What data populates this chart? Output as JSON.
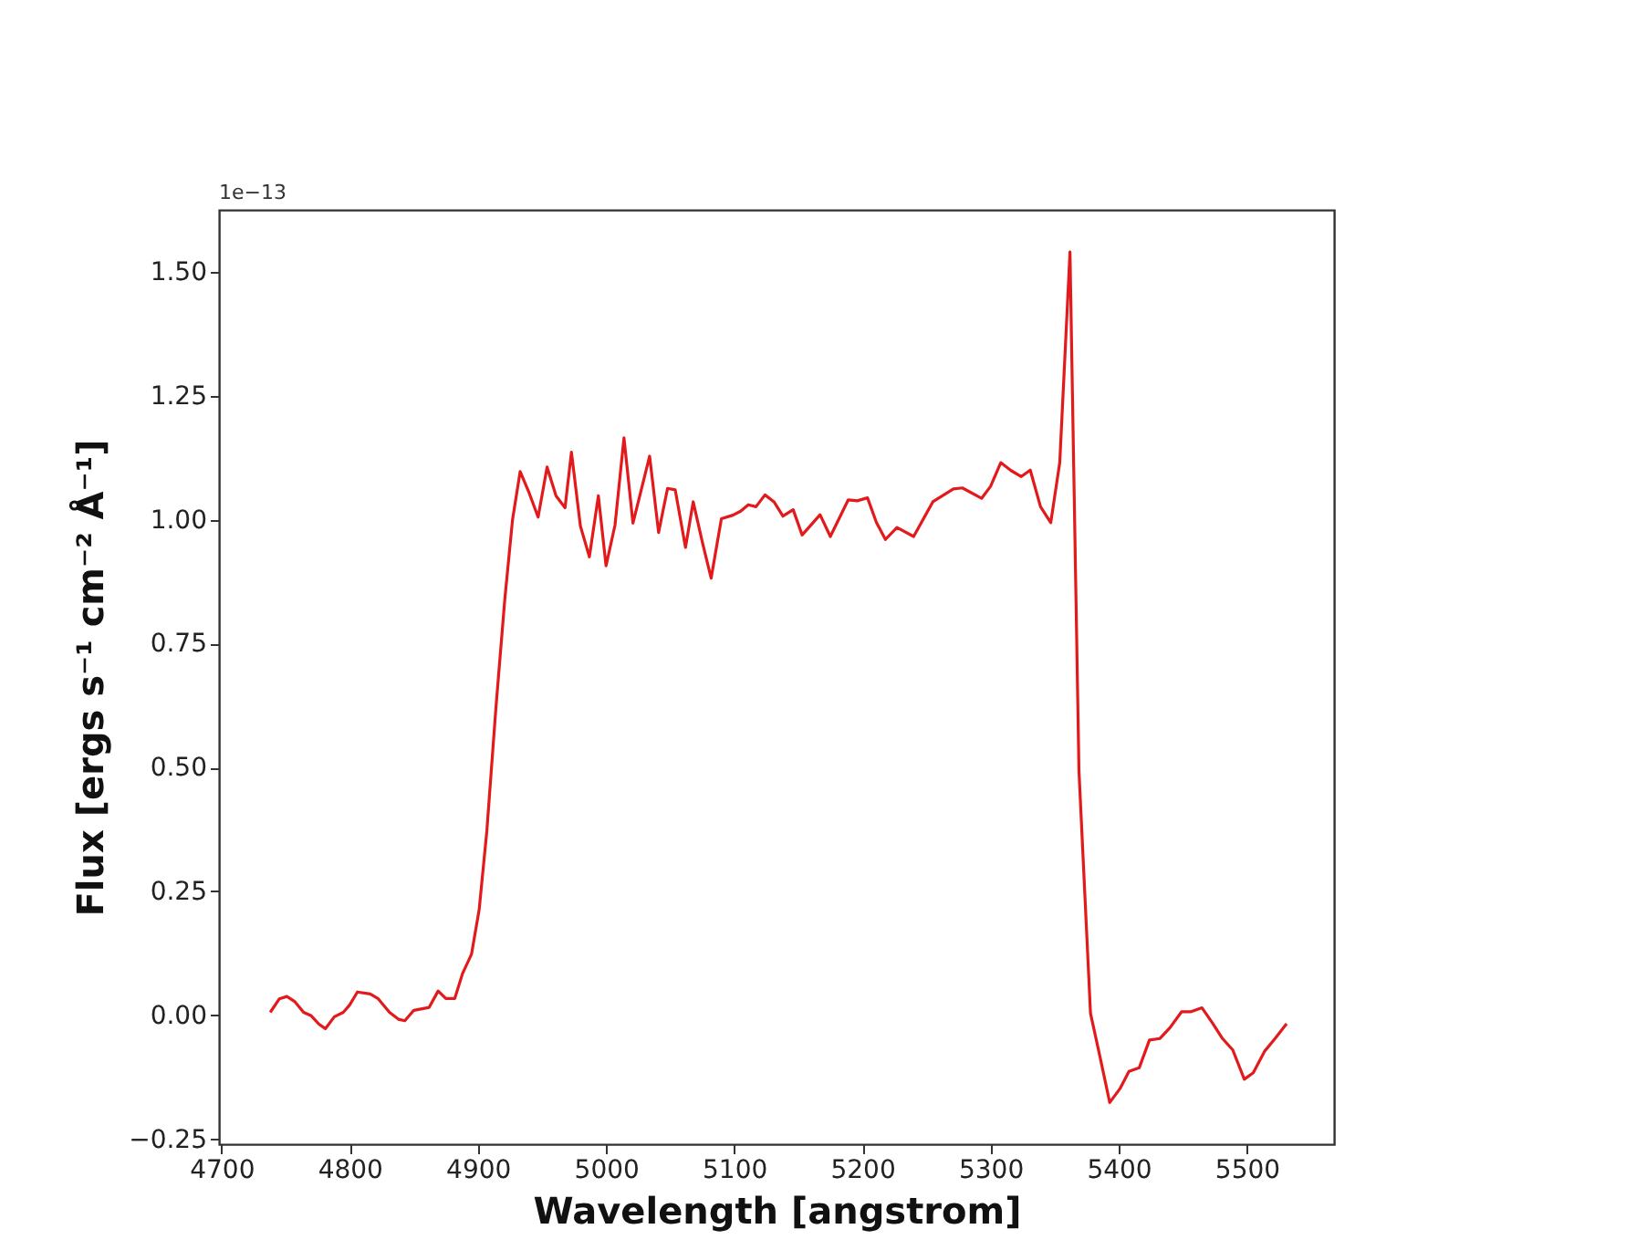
{
  "chart_data": {
    "type": "line",
    "xlabel": "Wavelength [angstrom]",
    "ylabel": "Flux [ergs s⁻¹ cm⁻² Å⁻¹]",
    "annotations": [
      "1e−13"
    ],
    "xlim": [
      4698,
      5568
    ],
    "ylim": [
      -0.26,
      1.625
    ],
    "xticks": [
      {
        "value": 4700,
        "label": "4700"
      },
      {
        "value": 4800,
        "label": "4800"
      },
      {
        "value": 4900,
        "label": "4900"
      },
      {
        "value": 5000,
        "label": "5000"
      },
      {
        "value": 5100,
        "label": "5100"
      },
      {
        "value": 5200,
        "label": "5200"
      },
      {
        "value": 5300,
        "label": "5300"
      },
      {
        "value": 5400,
        "label": "5400"
      },
      {
        "value": 5500,
        "label": "5500"
      }
    ],
    "yticks": [
      {
        "value": -0.25,
        "label": "−0.25"
      },
      {
        "value": 0,
        "label": "0.00"
      },
      {
        "value": 0.25,
        "label": "0.25"
      },
      {
        "value": 0.5,
        "label": "0.50"
      },
      {
        "value": 0.75,
        "label": "0.75"
      },
      {
        "value": 1,
        "label": "1.00"
      },
      {
        "value": 1.25,
        "label": "1.25"
      },
      {
        "value": 1.5,
        "label": "1.50"
      }
    ],
    "grid": false,
    "legend": false,
    "marker": "none",
    "line_style": "solid",
    "series": [
      {
        "color": "#e31a1c",
        "x": [
          4738,
          4745,
          4751,
          4757,
          4764,
          4770,
          4776,
          4781,
          4788,
          4795,
          4800,
          4806,
          4816,
          4822,
          4831,
          4838,
          4843,
          4850,
          4862,
          4869,
          4875,
          4882,
          4888,
          4895,
          4901,
          4907,
          4914,
          4921,
          4927,
          4933,
          4940,
          4947,
          4954,
          4961,
          4968,
          4973,
          4980,
          4987,
          4994,
          5000,
          5007,
          5014,
          5021,
          5034,
          5041,
          5048,
          5054,
          5062,
          5068,
          5075,
          5082,
          5090,
          5099,
          5105,
          5111,
          5117,
          5124,
          5131,
          5138,
          5146,
          5153,
          5167,
          5175,
          5189,
          5196,
          5204,
          5211,
          5218,
          5227,
          5240,
          5255,
          5263,
          5271,
          5278,
          5293,
          5300,
          5308,
          5316,
          5324,
          5331,
          5339,
          5347,
          5354,
          5362,
          5369,
          5378,
          5385,
          5393,
          5401,
          5408,
          5416,
          5424,
          5432,
          5440,
          5449,
          5456,
          5465,
          5473,
          5481,
          5489,
          5498,
          5505,
          5514,
          5522,
          5531
        ],
        "values": [
          0.006,
          0.033,
          0.038,
          0.028,
          0.006,
          -0.001,
          -0.018,
          -0.027,
          -0.003,
          0.006,
          0.021,
          0.047,
          0.043,
          0.034,
          0.006,
          -0.008,
          -0.011,
          0.01,
          0.016,
          0.049,
          0.034,
          0.034,
          0.084,
          0.123,
          0.213,
          0.372,
          0.618,
          0.839,
          0.999,
          1.097,
          1.054,
          1.005,
          1.106,
          1.048,
          1.024,
          1.136,
          0.987,
          0.925,
          1.048,
          0.907,
          0.989,
          1.165,
          0.993,
          1.128,
          0.974,
          1.063,
          1.06,
          0.944,
          1.036,
          0.956,
          0.882,
          1.002,
          1.009,
          1.017,
          1.03,
          1.026,
          1.05,
          1.036,
          1.007,
          1.02,
          0.969,
          1.01,
          0.966,
          1.04,
          1.038,
          1.044,
          0.994,
          0.96,
          0.984,
          0.966,
          1.036,
          1.049,
          1.062,
          1.064,
          1.043,
          1.067,
          1.115,
          1.099,
          1.087,
          1.1,
          1.026,
          0.994,
          1.115,
          1.54,
          0.493,
          0.004,
          -0.079,
          -0.176,
          -0.148,
          -0.113,
          -0.106,
          -0.05,
          -0.047,
          -0.025,
          0.007,
          0.007,
          0.015,
          -0.015,
          -0.047,
          -0.07,
          -0.129,
          -0.116,
          -0.072,
          -0.047,
          -0.017
        ]
      }
    ]
  }
}
